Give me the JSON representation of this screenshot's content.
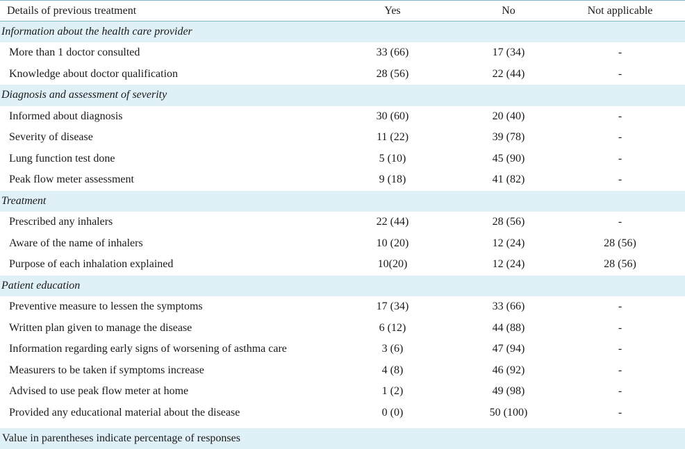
{
  "headers": [
    "Details of previous treatment",
    "Yes",
    "No",
    "Not applicable"
  ],
  "sections": [
    {
      "title": "Information about the health care provider",
      "rows": [
        {
          "label": "More than 1 doctor consulted",
          "yes": "33 (66)",
          "no": "17 (34)",
          "na": "-"
        },
        {
          "label": "Knowledge about doctor qualification",
          "yes": "28 (56)",
          "no": "22 (44)",
          "na": "-"
        }
      ]
    },
    {
      "title": "Diagnosis and assessment of severity",
      "rows": [
        {
          "label": "Informed about diagnosis",
          "yes": "30 (60)",
          "no": "20 (40)",
          "na": "-"
        },
        {
          "label": "Severity of disease",
          "yes": "11 (22)",
          "no": "39 (78)",
          "na": "-"
        },
        {
          "label": "Lung function test done",
          "yes": "5 (10)",
          "no": "45 (90)",
          "na": "-"
        },
        {
          "label": "Peak flow meter assessment",
          "yes": "9 (18)",
          "no": "41 (82)",
          "na": "-"
        }
      ]
    },
    {
      "title": "Treatment",
      "rows": [
        {
          "label": "Prescribed any inhalers",
          "yes": "22 (44)",
          "no": "28 (56)",
          "na": "-"
        },
        {
          "label": "Aware of the name of inhalers",
          "yes": "10 (20)",
          "no": "12 (24)",
          "na": "28 (56)"
        },
        {
          "label": "Purpose of each inhalation explained",
          "yes": "10(20)",
          "no": "12 (24)",
          "na": "28 (56)"
        }
      ]
    },
    {
      "title": "Patient education",
      "rows": [
        {
          "label": "Preventive measure to lessen the symptoms",
          "yes": "17 (34)",
          "no": "33 (66)",
          "na": "-"
        },
        {
          "label": "Written plan given to manage the disease",
          "yes": "6 (12)",
          "no": "44 (88)",
          "na": "-"
        },
        {
          "label": "Information regarding early signs of worsening of asthma care",
          "yes": "3 (6)",
          "no": "47 (94)",
          "na": "-"
        },
        {
          "label": "Measurers to be taken if symptoms increase",
          "yes": "4 (8)",
          "no": "46 (92)",
          "na": "-"
        },
        {
          "label": "Advised to use peak flow meter at home",
          "yes": "1 (2)",
          "no": "49 (98)",
          "na": "-"
        },
        {
          "label": "Provided any educational material about the disease",
          "yes": "0 (0)",
          "no": "50 (100)",
          "na": "-"
        }
      ]
    }
  ],
  "footnote": "Value in parentheses indicate percentage of responses"
}
